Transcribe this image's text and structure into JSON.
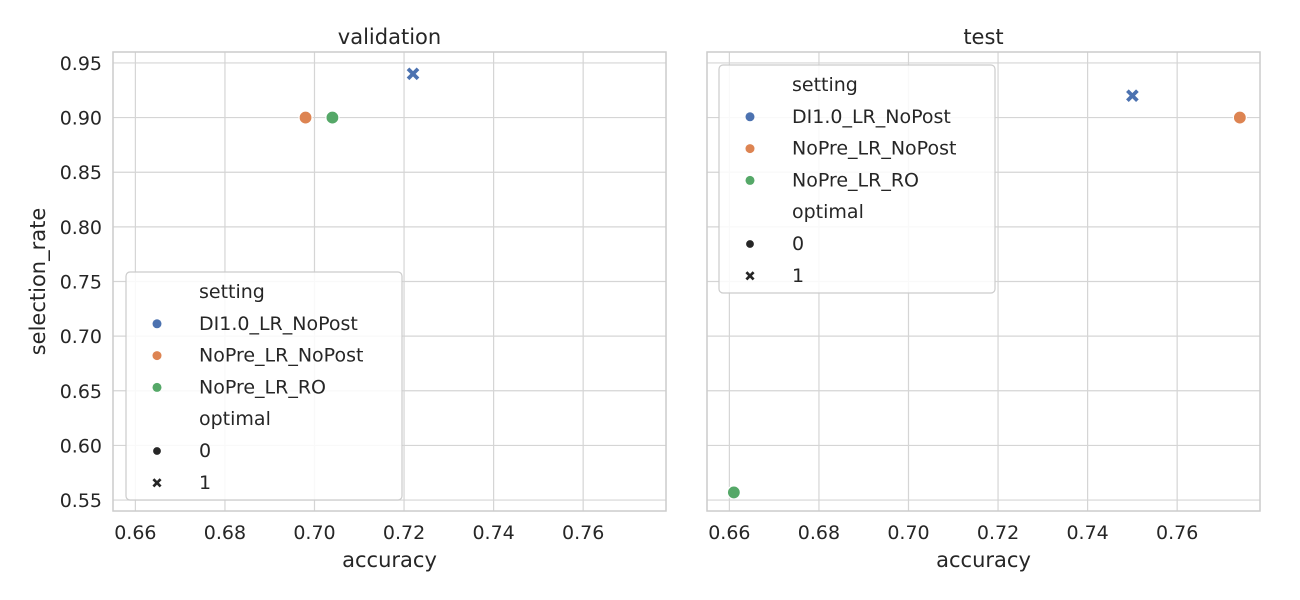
{
  "chart_data": [
    {
      "type": "scatter",
      "title": "validation",
      "xlabel": "accuracy",
      "ylabel": "selection_rate",
      "xlim": [
        0.655,
        0.7785
      ],
      "ylim": [
        0.54,
        0.96
      ],
      "xticks": [
        "0.66",
        "0.68",
        "0.70",
        "0.72",
        "0.74",
        "0.76"
      ],
      "yticks": [
        "0.55",
        "0.60",
        "0.65",
        "0.70",
        "0.75",
        "0.80",
        "0.85",
        "0.90",
        "0.95"
      ],
      "grid": true,
      "legend_position": "lower-left",
      "series": [
        {
          "name": "DI1.0_LR_NoPost",
          "color": "#4c72b0",
          "points": [
            {
              "x": 0.722,
              "y": 0.94,
              "optimal": "1"
            }
          ]
        },
        {
          "name": "NoPre_LR_NoPost",
          "color": "#dd8452",
          "points": [
            {
              "x": 0.698,
              "y": 0.9,
              "optimal": "0"
            }
          ]
        },
        {
          "name": "NoPre_LR_RO",
          "color": "#55a868",
          "points": [
            {
              "x": 0.704,
              "y": 0.9,
              "optimal": "0"
            }
          ]
        }
      ],
      "legend": {
        "hue_title": "setting",
        "hue_entries": [
          "DI1.0_LR_NoPost",
          "NoPre_LR_NoPost",
          "NoPre_LR_RO"
        ],
        "style_title": "optimal",
        "style_entries": [
          {
            "label": "0",
            "marker": "circle"
          },
          {
            "label": "1",
            "marker": "x"
          }
        ]
      }
    },
    {
      "type": "scatter",
      "title": "test",
      "xlabel": "accuracy",
      "ylabel": "",
      "xlim": [
        0.655,
        0.7785
      ],
      "ylim": [
        0.54,
        0.96
      ],
      "xticks": [
        "0.66",
        "0.68",
        "0.70",
        "0.72",
        "0.74",
        "0.76"
      ],
      "yticks": [],
      "grid": true,
      "legend_position": "upper-left",
      "series": [
        {
          "name": "DI1.0_LR_NoPost",
          "color": "#4c72b0",
          "points": [
            {
              "x": 0.75,
              "y": 0.92,
              "optimal": "1"
            }
          ]
        },
        {
          "name": "NoPre_LR_NoPost",
          "color": "#dd8452",
          "points": [
            {
              "x": 0.774,
              "y": 0.9,
              "optimal": "0"
            }
          ]
        },
        {
          "name": "NoPre_LR_RO",
          "color": "#55a868",
          "points": [
            {
              "x": 0.661,
              "y": 0.557,
              "optimal": "0"
            }
          ]
        }
      ],
      "legend": {
        "hue_title": "setting",
        "hue_entries": [
          "DI1.0_LR_NoPost",
          "NoPre_LR_NoPost",
          "NoPre_LR_RO"
        ],
        "style_title": "optimal",
        "style_entries": [
          {
            "label": "0",
            "marker": "circle"
          },
          {
            "label": "1",
            "marker": "x"
          }
        ]
      }
    }
  ]
}
